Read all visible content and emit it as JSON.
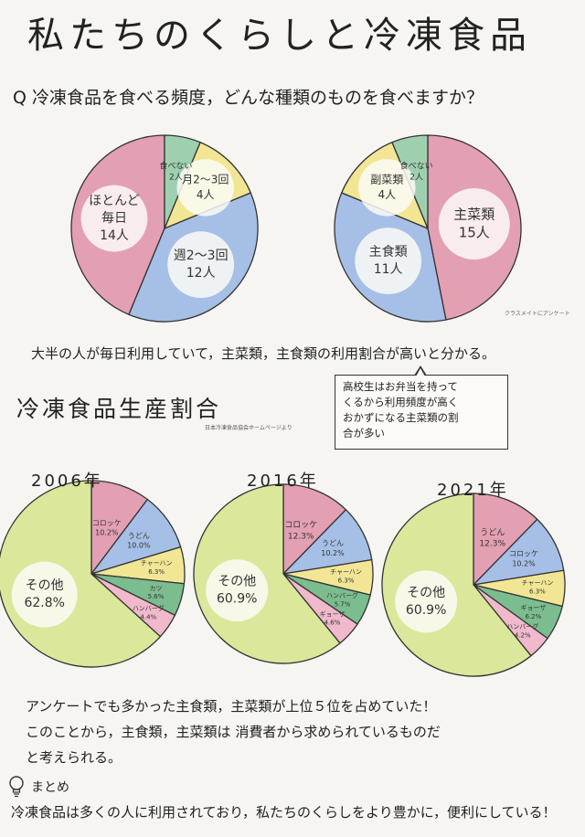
{
  "page": {
    "title": "私たちのくらしと冷凍食品",
    "question": "Q 冷凍食品を食べる頻度，どんな種類のものを食べますか？",
    "survey_note": "クラスメイトにアンケート",
    "finding": "大半の人が毎日利用していて，主菜類，主食類の利用割合が高いと分かる。",
    "bubble_lines": [
      "高校生はお弁当を持って",
      "くるから利用頻度が高く",
      "おかずになる主菜類の割",
      "合が多い"
    ],
    "production_title": "冷凍食品生産割合",
    "production_source": "日本冷凍食品協会ホームページより",
    "conclusion_lines": [
      "アンケートでも多かった主食類，主菜類が上位５位を占めていた！",
      "このことから，主食類，主菜類は 消費者から求められているものだ",
      "と考えられる。"
    ],
    "summary_label": "まとめ",
    "summary_text": "冷凍食品は多くの人に利用されており，私たちのくらしをより豊かに，便利にしている！"
  },
  "colors": {
    "red": "#e3a0b2",
    "green": "#9ed0b0",
    "yellow": "#f2e694",
    "blue": "#a6bfe6",
    "lime": "#dbe79a",
    "orange": "#f6c98f",
    "pink": "#f0b9cc",
    "darkgreen": "#7bbd8f"
  },
  "chart_data": [
    {
      "type": "pie",
      "title": "",
      "slices": [
        {
          "label": "ほとんど毎日",
          "value": 14,
          "text": [
            "ほとんど",
            "毎日",
            "14人"
          ],
          "color": "red"
        },
        {
          "label": "週2〜3回",
          "value": 12,
          "text": [
            "週2〜3回",
            "12人"
          ],
          "color": "blue"
        },
        {
          "label": "月2〜3回",
          "value": 4,
          "text": [
            "月2〜3回",
            "4人"
          ],
          "color": "yellow"
        },
        {
          "label": "食べない",
          "value": 2,
          "text": [
            "食べない",
            "2人"
          ],
          "color": "green"
        }
      ]
    },
    {
      "type": "pie",
      "title": "",
      "slices": [
        {
          "label": "主菜類",
          "value": 15,
          "text": [
            "主菜類",
            "15人"
          ],
          "color": "red"
        },
        {
          "label": "主食類",
          "value": 11,
          "text": [
            "主食類",
            "11人"
          ],
          "color": "blue"
        },
        {
          "label": "副菜類",
          "value": 4,
          "text": [
            "副菜類",
            "4人"
          ],
          "color": "yellow"
        },
        {
          "label": "食べない",
          "value": 2,
          "text": [
            "食べない",
            "2人"
          ],
          "color": "green"
        }
      ]
    },
    {
      "type": "pie",
      "title": "2006年",
      "slices": [
        {
          "label": "コロッケ",
          "value": 10.2,
          "text": [
            "コロッケ",
            "10.2%"
          ],
          "color": "red"
        },
        {
          "label": "うどん",
          "value": 10.0,
          "text": [
            "うどん",
            "10.0%"
          ],
          "color": "blue"
        },
        {
          "label": "チャーハン",
          "value": 6.3,
          "text": [
            "チャーハン",
            "6.3%"
          ],
          "color": "yellow"
        },
        {
          "label": "カツ",
          "value": 5.6,
          "text": [
            "カツ",
            "5.6%"
          ],
          "color": "darkgreen"
        },
        {
          "label": "ハンバーグ",
          "value": 4.4,
          "text": [
            "ハンバーグ",
            "4.4%"
          ],
          "color": "pink"
        },
        {
          "label": "その他",
          "value": 62.8,
          "text": [
            "その他",
            "62.8%"
          ],
          "color": "lime"
        }
      ]
    },
    {
      "type": "pie",
      "title": "2016年",
      "slices": [
        {
          "label": "コロッケ",
          "value": 12.3,
          "text": [
            "コロッケ",
            "12.3%"
          ],
          "color": "red"
        },
        {
          "label": "うどん",
          "value": 10.2,
          "text": [
            "うどん",
            "10.2%"
          ],
          "color": "blue"
        },
        {
          "label": "チャーハン",
          "value": 6.3,
          "text": [
            "チャーハン",
            "6.3%"
          ],
          "color": "yellow"
        },
        {
          "label": "ハンバーグ",
          "value": 5.7,
          "text": [
            "ハンバーグ",
            "5.7%"
          ],
          "color": "darkgreen"
        },
        {
          "label": "ギョーザ",
          "value": 4.6,
          "text": [
            "ギョーザ",
            "4.6%"
          ],
          "color": "pink"
        },
        {
          "label": "その他",
          "value": 60.9,
          "text": [
            "その他",
            "60.9%"
          ],
          "color": "lime"
        }
      ]
    },
    {
      "type": "pie",
      "title": "2021年",
      "slices": [
        {
          "label": "うどん",
          "value": 12.3,
          "text": [
            "うどん",
            "12.3%"
          ],
          "color": "red"
        },
        {
          "label": "コロッケ",
          "value": 10.2,
          "text": [
            "コロッケ",
            "10.2%"
          ],
          "color": "blue"
        },
        {
          "label": "チャーハン",
          "value": 6.3,
          "text": [
            "チャーハン",
            "6.3%"
          ],
          "color": "yellow"
        },
        {
          "label": "ギョーザ",
          "value": 6.2,
          "text": [
            "ギョーザ",
            "6.2%"
          ],
          "color": "darkgreen"
        },
        {
          "label": "ハンバーグ",
          "value": 4.2,
          "text": [
            "ハンバーグ",
            "4.2%"
          ],
          "color": "pink"
        },
        {
          "label": "その他",
          "value": 60.9,
          "text": [
            "その他",
            "60.9%"
          ],
          "color": "lime"
        }
      ]
    }
  ]
}
